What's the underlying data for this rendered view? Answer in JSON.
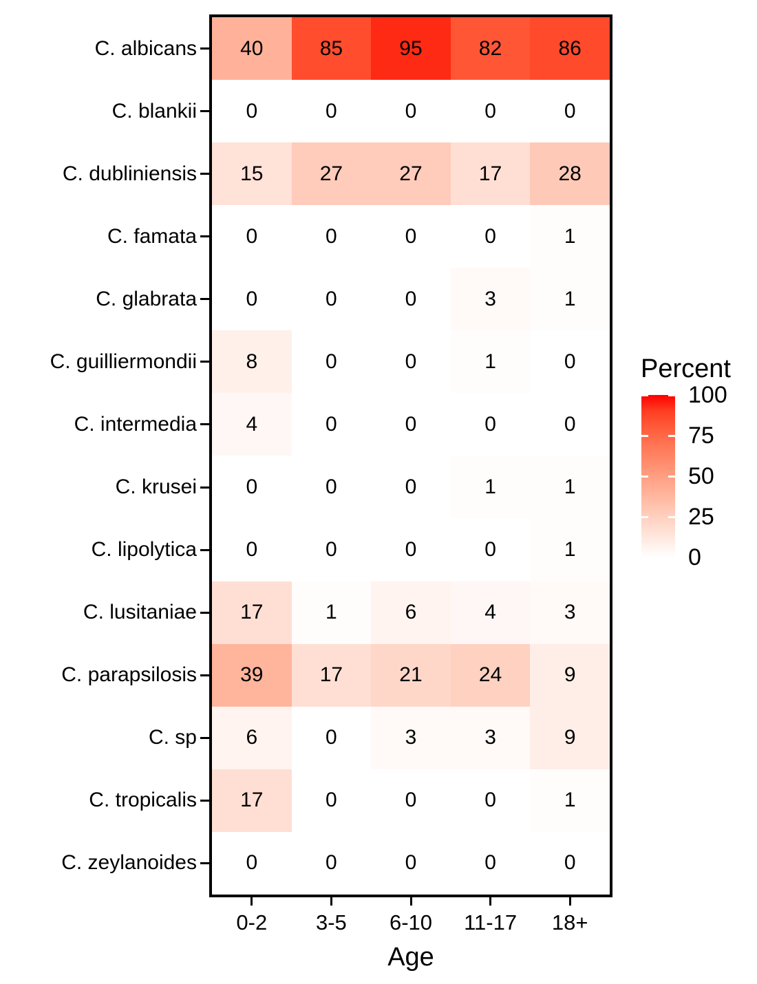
{
  "figure": {
    "background_color": "#FFFFFF",
    "panel_border_color": "#000000",
    "text_color": "#000000"
  },
  "chart_data": {
    "type": "heatmap",
    "title": "",
    "xlabel": "Age",
    "ylabel": "",
    "x_categories": [
      "0-2",
      "3-5",
      "6-10",
      "11-17",
      "18+"
    ],
    "y_categories": [
      "C. albicans",
      "C. blankii",
      "C. dubliniensis",
      "C. famata",
      "C. glabrata",
      "C. guilliermondii",
      "C. intermedia",
      "C. krusei",
      "C. lipolytica",
      "C. lusitaniae",
      "C. parapsilosis",
      "C. sp",
      "C. tropicalis",
      "C. zeylanoides"
    ],
    "values": [
      [
        40,
        85,
        95,
        82,
        86
      ],
      [
        0,
        0,
        0,
        0,
        0
      ],
      [
        15,
        27,
        27,
        17,
        28
      ],
      [
        0,
        0,
        0,
        0,
        1
      ],
      [
        0,
        0,
        0,
        3,
        1
      ],
      [
        8,
        0,
        0,
        1,
        0
      ],
      [
        4,
        0,
        0,
        0,
        0
      ],
      [
        0,
        0,
        0,
        1,
        1
      ],
      [
        0,
        0,
        0,
        0,
        1
      ],
      [
        17,
        1,
        6,
        4,
        3
      ],
      [
        39,
        17,
        21,
        24,
        9
      ],
      [
        6,
        0,
        3,
        3,
        9
      ],
      [
        17,
        0,
        0,
        0,
        1
      ],
      [
        0,
        0,
        0,
        0,
        0
      ]
    ],
    "value_range": [
      0,
      100
    ],
    "grid": false,
    "legend": {
      "title": "Percent",
      "tick_values": [
        100,
        75,
        50,
        25,
        0
      ],
      "low_color": "#FFFFFF",
      "high_color": "#FF0000",
      "interpolation": "lab",
      "position": "right"
    }
  }
}
